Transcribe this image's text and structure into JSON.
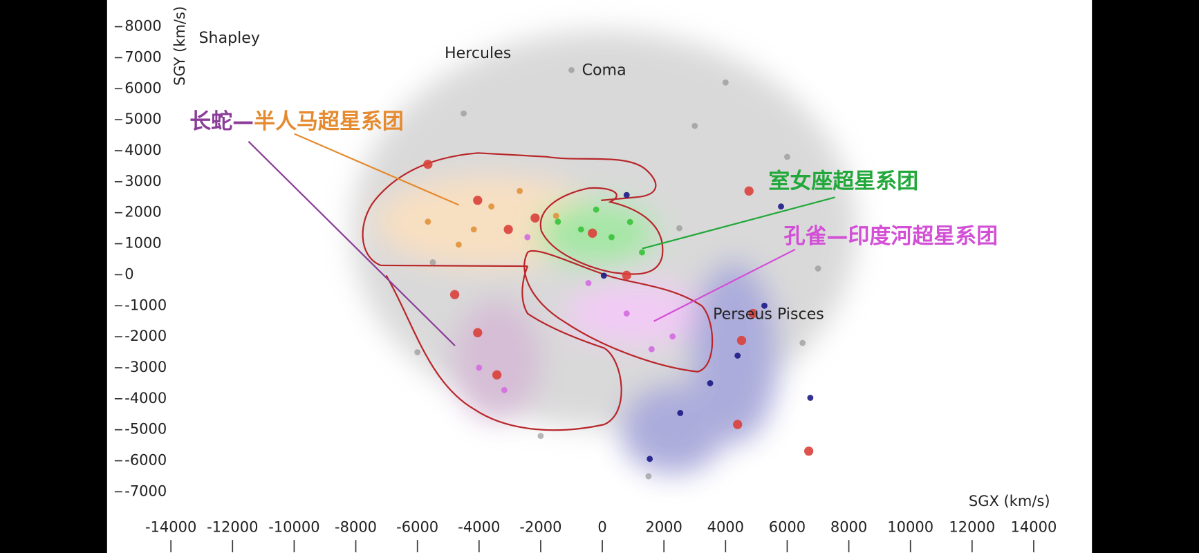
{
  "chart_data": {
    "type": "scatter",
    "xlabel": "SGX (km/s)",
    "ylabel": "SGY (km/s)",
    "xlim": [
      -15700,
      15890
    ],
    "ylim": [
      -8975,
      8860
    ],
    "xticks": [
      -14000,
      -12000,
      -10000,
      -8000,
      -6000,
      -4000,
      -2000,
      0,
      2000,
      4000,
      6000,
      8000,
      10000,
      12000,
      14000
    ],
    "yticks": [
      -7000,
      -6000,
      -5000,
      -4000,
      -3000,
      -2000,
      -1000,
      0,
      1000,
      2000,
      3000,
      4000,
      5000,
      6000,
      7000,
      8000
    ],
    "annotations": [
      "Shapley",
      "Hercules",
      "Coma",
      "Perseus Pisces"
    ],
    "labels": [
      {
        "parts": [
          {
            "text": "长蛇—",
            "color": "#8a3c98"
          },
          {
            "text": "半人马超星系团",
            "color": "#e58a2e"
          }
        ]
      },
      {
        "parts": [
          {
            "text": "室女座超星系团",
            "color": "#22a83a"
          }
        ]
      },
      {
        "parts": [
          {
            "text": "孔雀—印度河超星系团",
            "color": "#d24fd6"
          }
        ]
      }
    ],
    "series": [
      {
        "color": "#888888",
        "x": [
          -4500,
          -1000,
          3000,
          6000,
          -6000,
          1500,
          7000,
          -2000,
          4000,
          2500,
          -5500,
          6500
        ],
        "y": [
          5200,
          6600,
          4800,
          3800,
          -2500,
          -6500,
          200,
          -5200,
          6200,
          1500,
          400,
          -2200
        ]
      },
      {
        "color": "#1c1a86",
        "x": [
          4390,
          2530,
          1540,
          790,
          5260,
          6750,
          50,
          3500,
          5800
        ],
        "y": [
          -2610,
          -4460,
          -5940,
          2570,
          -1000,
          -3970,
          -30,
          -3500,
          2200
        ]
      },
      {
        "color": "#38c23a",
        "x": [
          -690,
          300,
          -1440,
          1290,
          -200,
          900
        ],
        "y": [
          1460,
          1210,
          1710,
          720,
          2100,
          1700
        ]
      },
      {
        "color": "#d36be0",
        "x": [
          -450,
          790,
          2280,
          -2430,
          -3180,
          1600,
          -4000
        ],
        "y": [
          -270,
          -1250,
          -1990,
          1210,
          -3720,
          -2400,
          -3000
        ]
      },
      {
        "color": "#e0923a",
        "x": [
          -4170,
          -5660,
          -2680,
          -4660,
          -3600,
          -1500
        ],
        "y": [
          1460,
          1710,
          2700,
          970,
          2200,
          1900
        ]
      },
      {
        "color": "#d9403a",
        "x": [
          -5660,
          -4045,
          -3050,
          -2180,
          -4790,
          -4045,
          -3420,
          -320,
          790,
          4520,
          4890,
          6700,
          4760,
          4390
        ],
        "y": [
          3560,
          2400,
          1460,
          1830,
          -640,
          -1870,
          -3230,
          1340,
          -20,
          -2120,
          -1250,
          -5690,
          2700,
          -4830
        ]
      }
    ]
  }
}
